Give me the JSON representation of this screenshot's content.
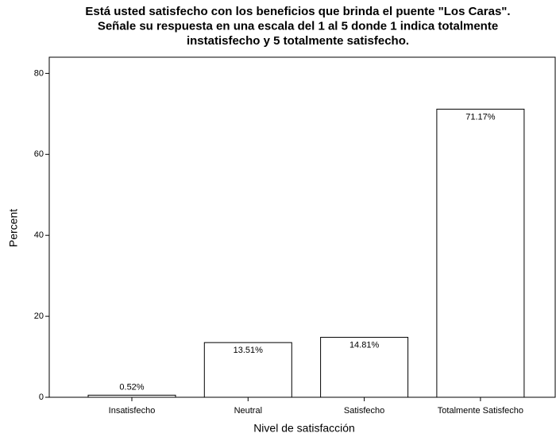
{
  "chart_data": {
    "type": "bar",
    "title": [
      "Está usted satisfecho con los beneficios que brinda el puente \"Los Caras\".",
      "Señale su respuesta en una escala del 1 al 5 donde 1 indica totalmente",
      "instatisfecho y 5 totalmente satisfecho."
    ],
    "x_label": "Nivel de satisfacción",
    "y_label": "Percent",
    "categories": [
      "Insatisfecho",
      "Neutral",
      "Satisfecho",
      "Totalmente Satisfecho"
    ],
    "values": [
      0.52,
      13.51,
      14.81,
      71.17
    ],
    "value_labels": [
      "0.52%",
      "13.51%",
      "14.81%",
      "71.17%"
    ],
    "color": "#ffffff",
    "ylim": [
      0,
      84
    ],
    "yticks": [
      0,
      20,
      40,
      60,
      80
    ],
    "grid": false
  }
}
